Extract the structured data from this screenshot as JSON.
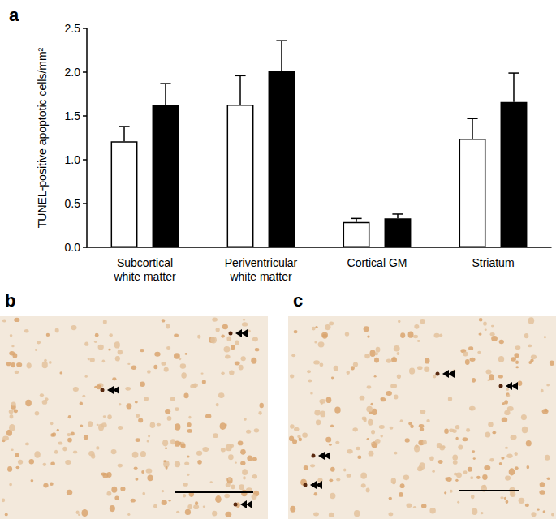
{
  "chart_data": {
    "type": "bar",
    "panel_label": "a",
    "y_label": "TUNEL-positive apoptotic cells/mm²",
    "categories": [
      "Subcortical\nwhite matter",
      "Periventricular\nwhite matter",
      "Cortical GM",
      "Striatum"
    ],
    "series": [
      {
        "color": "#ffffff",
        "values": [
          1.21,
          1.63,
          0.29,
          1.24
        ],
        "errors": [
          0.17,
          0.33,
          0.04,
          0.23
        ]
      },
      {
        "color": "#000000",
        "values": [
          1.63,
          2.01,
          0.33,
          1.66
        ],
        "errors": [
          0.24,
          0.35,
          0.05,
          0.33
        ]
      }
    ],
    "ylim": [
      0,
      2.5
    ],
    "yticks": [
      {
        "value": 0,
        "label": "0.0"
      },
      0.5,
      {
        "value": 1,
        "label": "1.0"
      },
      1.5,
      {
        "value": 2,
        "label": "2.0"
      },
      2.5
    ],
    "grid": false
  },
  "panels": [
    {
      "label": "b"
    },
    {
      "label": "c"
    }
  ]
}
